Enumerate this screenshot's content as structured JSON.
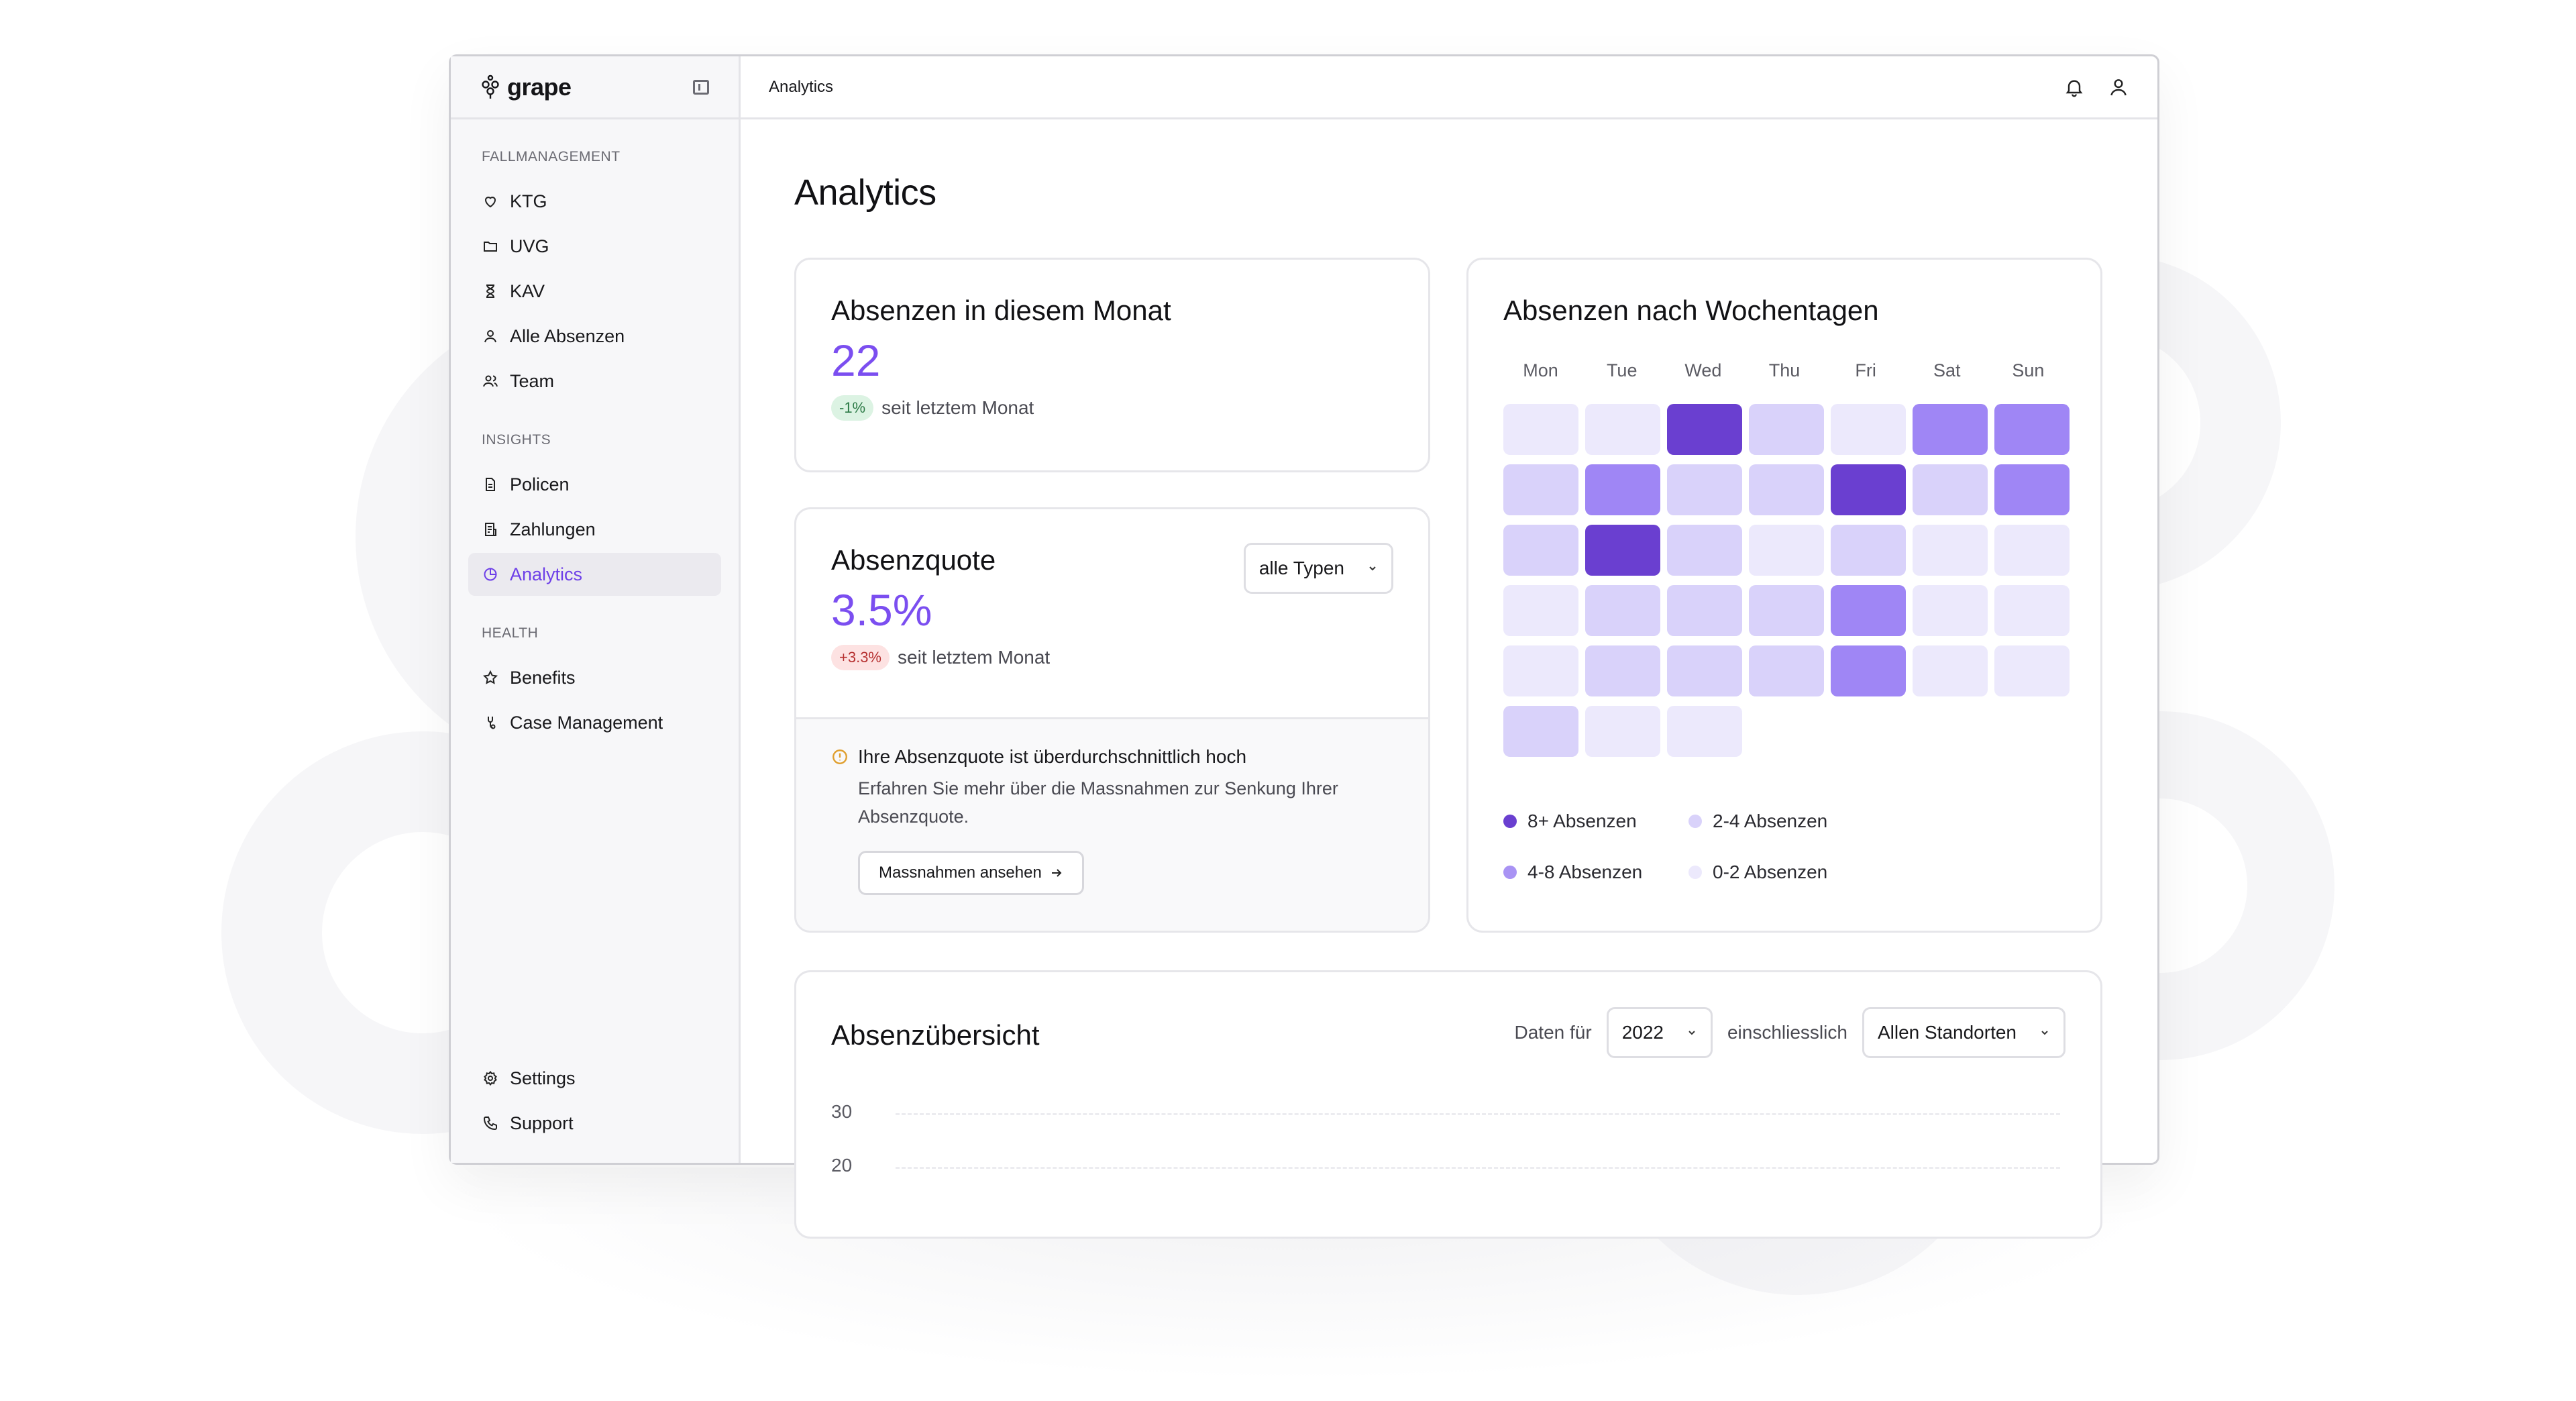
{
  "app": {
    "name": "grape"
  },
  "topbar": {
    "breadcrumb": "Analytics"
  },
  "sidebar": {
    "sections": [
      {
        "title": "FALLMANAGEMENT",
        "items": [
          {
            "label": "KTG",
            "icon": "heart-icon"
          },
          {
            "label": "UVG",
            "icon": "folder-icon"
          },
          {
            "label": "KAV",
            "icon": "hourglass-icon"
          },
          {
            "label": "Alle Absenzen",
            "icon": "user-icon"
          },
          {
            "label": "Team",
            "icon": "users-icon"
          }
        ]
      },
      {
        "title": "INSIGHTS",
        "items": [
          {
            "label": "Policen",
            "icon": "document-icon"
          },
          {
            "label": "Zahlungen",
            "icon": "receipt-icon"
          },
          {
            "label": "Analytics",
            "icon": "pie-chart-icon",
            "active": true
          }
        ]
      },
      {
        "title": "HEALTH",
        "items": [
          {
            "label": "Benefits",
            "icon": "star-icon"
          },
          {
            "label": "Case Management",
            "icon": "stethoscope-icon"
          }
        ]
      }
    ],
    "bottom": [
      {
        "label": "Settings",
        "icon": "gear-icon"
      },
      {
        "label": "Support",
        "icon": "phone-icon"
      }
    ]
  },
  "page": {
    "title": "Analytics"
  },
  "monthly_card": {
    "title": "Absenzen in diesem Monat",
    "value": "22",
    "delta": "-1%",
    "delta_text": "seit letztem Monat"
  },
  "rate_card": {
    "title": "Absenzquote",
    "value": "3.5%",
    "delta": "+3.3%",
    "delta_text": "seit letztem Monat",
    "filter": "alle Typen",
    "notice_title": "Ihre Absenzquote ist überdurchschnittlich hoch",
    "notice_body": "Erfahren Sie mehr über die Massnahmen zur Senkung Ihrer Absenzquote.",
    "notice_button": "Massnahmen ansehen"
  },
  "weekday_card": {
    "title": "Absenzen nach Wochentagen",
    "days": [
      "Mon",
      "Tue",
      "Wed",
      "Thu",
      "Fri",
      "Sat",
      "Sun"
    ],
    "levels": [
      [
        0,
        0,
        3,
        1,
        0,
        2,
        2
      ],
      [
        1,
        2,
        1,
        1,
        3,
        1,
        2
      ],
      [
        1,
        3,
        1,
        0,
        1,
        0,
        0
      ],
      [
        0,
        1,
        1,
        1,
        2,
        0,
        0
      ],
      [
        0,
        1,
        1,
        1,
        2,
        0,
        0
      ],
      [
        1,
        0,
        0
      ]
    ],
    "level_colors": [
      "#ece9fc",
      "#d9d2fa",
      "#9f86f5",
      "#6a3fd0"
    ],
    "legend": [
      {
        "label": "8+ Absenzen",
        "color": "#6a3fd0"
      },
      {
        "label": "2-4 Absenzen",
        "color": "#d9d2fa"
      },
      {
        "label": "4-8 Absenzen",
        "color": "#a993f4"
      },
      {
        "label": "0-2 Absenzen",
        "color": "#ece9fc"
      }
    ]
  },
  "overview_card": {
    "title": "Absenzübersicht",
    "data_for_label": "Daten für",
    "year": "2022",
    "including_label": "einschliesslich",
    "location": "Allen Standorten",
    "y_ticks": [
      "30",
      "20"
    ]
  }
}
